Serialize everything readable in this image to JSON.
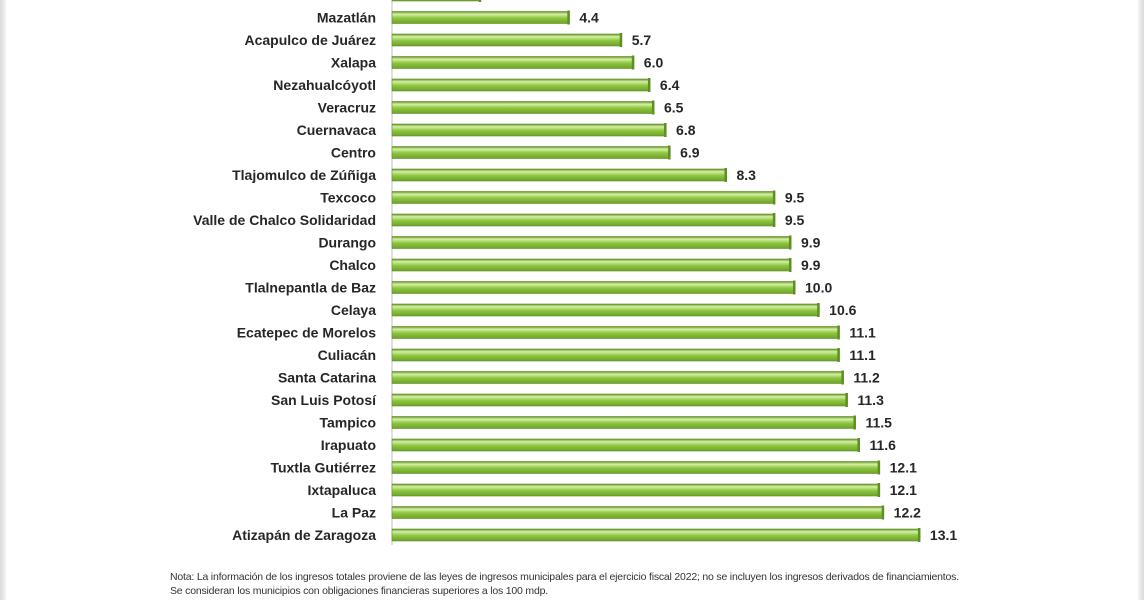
{
  "chart_data": {
    "type": "bar",
    "orientation": "horizontal",
    "categories": [
      "",
      "Mazatlán",
      "Acapulco de Juárez",
      "Xalapa",
      "Nezahualcóyotl",
      "Veracruz",
      "Cuernavaca",
      "Centro",
      "Tlajomulco de Zúñiga",
      "Texcoco",
      "Valle de Chalco Solidaridad",
      "Durango",
      "Chalco",
      "Tlalnepantla de Baz",
      "Celaya",
      "Ecatepec de Morelos",
      "Culiacán",
      "Santa Catarina",
      "San Luis Potosí",
      "Tampico",
      "Irapuato",
      "Tuxtla Gutiérrez",
      "Ixtapaluca",
      "La Paz",
      "Atizapán de Zaragoza"
    ],
    "values": [
      2.2,
      4.4,
      5.7,
      6.0,
      6.4,
      6.5,
      6.8,
      6.9,
      8.3,
      9.5,
      9.5,
      9.9,
      9.9,
      10.0,
      10.6,
      11.1,
      11.1,
      11.2,
      11.3,
      11.5,
      11.6,
      12.1,
      12.1,
      12.2,
      13.1
    ],
    "value_labels": [
      "",
      "4.4",
      "5.7",
      "6.0",
      "6.4",
      "6.5",
      "6.8",
      "6.9",
      "8.3",
      "9.5",
      "9.5",
      "9.9",
      "9.9",
      "10.0",
      "10.6",
      "11.1",
      "11.1",
      "11.2",
      "11.3",
      "11.5",
      "11.6",
      "12.1",
      "12.1",
      "12.2",
      "13.1"
    ],
    "xlim": [
      0,
      14
    ],
    "grid": false,
    "bar_color": "#8dc63f",
    "bar_highlight": "#d6f0a6",
    "bar_shadow": "#5e8f22"
  },
  "notes": {
    "line1": "Nota: La información de los ingresos totales proviene de las leyes de ingresos municipales para el ejercicio fiscal 2022; no se incluyen los ingresos derivados de financiamientos.",
    "line2": "Se consideran los municipios con obligaciones financieras superiores a los 100 mdp."
  }
}
